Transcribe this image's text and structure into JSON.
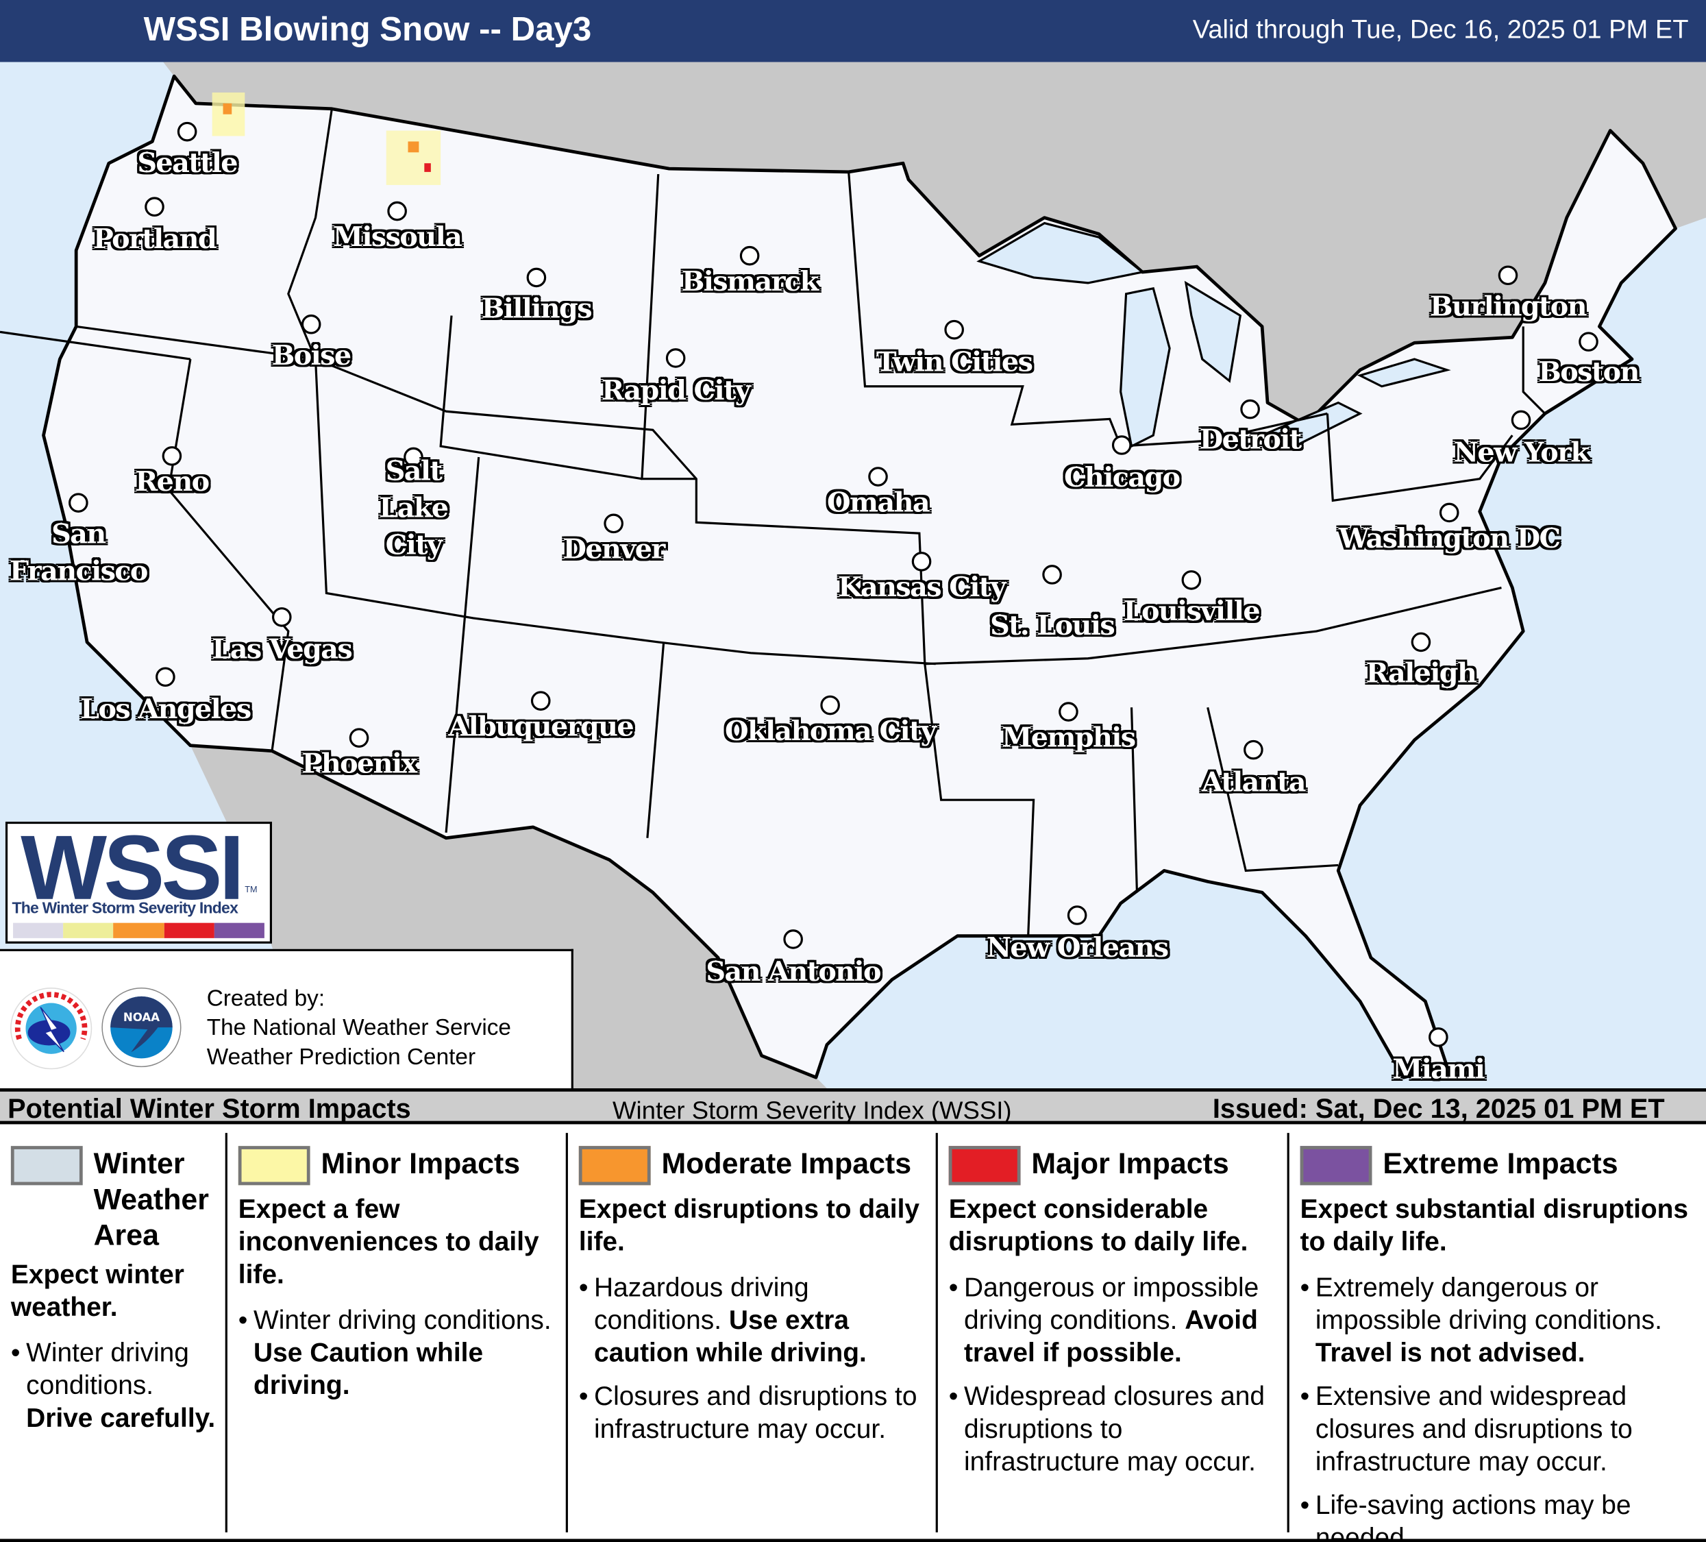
{
  "header": {
    "title": "WSSI Blowing Snow -- Day3",
    "valid": "Valid through Tue, Dec 16, 2025 01 PM ET"
  },
  "colors": {
    "header": "#253d73",
    "water": "#dcecfa",
    "land_foreign": "#c8c8c8",
    "land_us": "#f7f8fc",
    "winter_weather_area": "#d3dee6",
    "minor": "#fcf7a6",
    "moderate": "#f7962e",
    "major": "#e31e25",
    "extreme": "#7b52a0"
  },
  "map": {
    "cities": [
      "Seattle",
      "Portland",
      "Missoula",
      "Billings",
      "Bismarck",
      "Boise",
      "Rapid City",
      "Twin Cities",
      "Burlington",
      "Boston",
      "Detroit",
      "New York",
      "Reno",
      "Salt Lake City",
      "Chicago",
      "Omaha",
      "Washington DC",
      "Denver",
      "San Francisco",
      "Kansas City",
      "St. Louis",
      "Louisville",
      "Las Vegas",
      "Raleigh",
      "Los Angeles",
      "Oklahoma City",
      "Memphis",
      "Albuquerque",
      "Phoenix",
      "Atlanta",
      "New Orleans",
      "San Antonio",
      "Miami"
    ],
    "impacts_shown": "scattered minor-to-moderate impacts in northern Washington and Montana Rockies"
  },
  "logo": {
    "word": "WSSI",
    "tm": "TM",
    "subtitle": "The Winter Storm Severity Index"
  },
  "credits": {
    "line1": "Created by:",
    "line2": "The National Weather Service",
    "line3": "Weather Prediction Center",
    "nws_logo": "NATIONAL WEATHER SERVICE",
    "noaa_logo": "NOAA"
  },
  "legend_bar": {
    "left": "Potential Winter Storm Impacts",
    "middle": "Winter Storm Severity Index (WSSI)",
    "right": "Issued: Sat, Dec 13, 2025 01 PM ET"
  },
  "legend": [
    {
      "title": "Winter Weather Area",
      "lead": "Expect winter weather.",
      "bullets": [
        {
          "text": "Winter driving conditions. ",
          "bold": "Drive carefully."
        }
      ]
    },
    {
      "title": "Minor Impacts",
      "lead": "Expect a few inconveniences to daily life.",
      "bullets": [
        {
          "text": "Winter driving conditions. ",
          "bold": "Use Caution while driving."
        }
      ]
    },
    {
      "title": "Moderate Impacts",
      "lead": "Expect disruptions to daily life.",
      "bullets": [
        {
          "text": "Hazardous driving conditions. ",
          "bold": "Use extra caution while driving."
        },
        {
          "text": "Closures and disruptions to infrastructure may occur.",
          "bold": ""
        }
      ]
    },
    {
      "title": "Major Impacts",
      "lead": "Expect considerable disruptions to daily life.",
      "bullets": [
        {
          "text": "Dangerous or impossible driving conditions. ",
          "bold": "Avoid travel if possible."
        },
        {
          "text": "Widespread closures and disruptions to infrastructure may occur.",
          "bold": ""
        }
      ]
    },
    {
      "title": "Extreme Impacts",
      "lead": "Expect substantial disruptions to daily life.",
      "bullets": [
        {
          "text": "Extremely dangerous or impossible driving conditions. ",
          "bold": "Travel is not advised."
        },
        {
          "text": "Extensive and widespread closures and disruptions to infrastructure may occur.",
          "bold": ""
        },
        {
          "text": "Life-saving actions may be needed.",
          "bold": ""
        }
      ]
    }
  ]
}
